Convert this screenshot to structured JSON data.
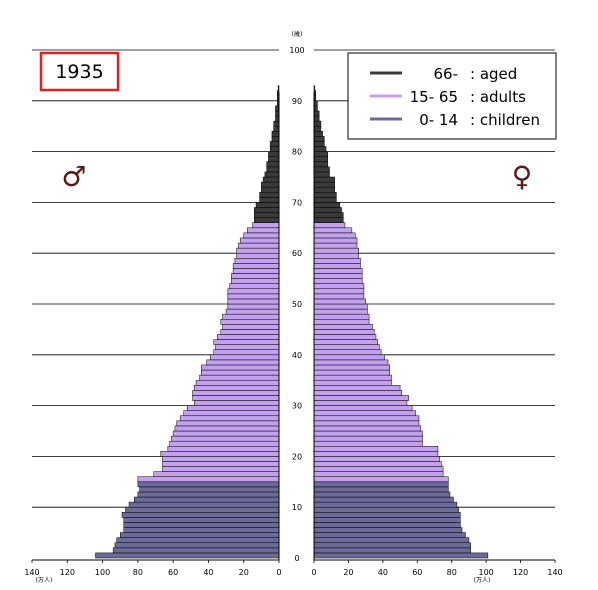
{
  "chart_data": {
    "type": "bar",
    "orientation": "horizontal",
    "chart_kind": "population-pyramid",
    "year": "1935",
    "age_axis": {
      "ticks": [
        0,
        10,
        20,
        30,
        40,
        50,
        60,
        70,
        80,
        90,
        100
      ],
      "unit": "(歳)",
      "range": [
        0,
        100
      ]
    },
    "value_axis": {
      "ticks": [
        0,
        20,
        40,
        60,
        80,
        100,
        120,
        140
      ],
      "unit": "(万人)",
      "range": [
        0,
        140
      ]
    },
    "gender_symbols": {
      "male": "♂",
      "female": "♀"
    },
    "legend": [
      {
        "range": "66-",
        "label": ": aged",
        "color": "#3a3a3a"
      },
      {
        "range": "15- 65",
        "label": ": adults",
        "color": "#c3a1ef"
      },
      {
        "range": "0- 14",
        "label": ": children",
        "color": "#6b6b9a"
      }
    ],
    "groups": [
      {
        "name": "children",
        "min_age": 0,
        "max_age": 14,
        "color": "#6b6b9a"
      },
      {
        "name": "adults",
        "min_age": 15,
        "max_age": 65,
        "color": "#c3a1ef"
      },
      {
        "name": "aged",
        "min_age": 66,
        "max_age": 100,
        "color": "#3a3a3a"
      }
    ],
    "ages": [
      0,
      1,
      2,
      3,
      4,
      5,
      6,
      7,
      8,
      9,
      10,
      11,
      12,
      13,
      14,
      15,
      16,
      17,
      18,
      19,
      20,
      21,
      22,
      23,
      24,
      25,
      26,
      27,
      28,
      29,
      30,
      31,
      32,
      33,
      34,
      35,
      36,
      37,
      38,
      39,
      40,
      41,
      42,
      43,
      44,
      45,
      46,
      47,
      48,
      49,
      50,
      51,
      52,
      53,
      54,
      55,
      56,
      57,
      58,
      59,
      60,
      61,
      62,
      63,
      64,
      65,
      66,
      67,
      68,
      69,
      70,
      71,
      72,
      73,
      74,
      75,
      76,
      77,
      78,
      79,
      80,
      81,
      82,
      83,
      84,
      85,
      86,
      87,
      88,
      89,
      90,
      91,
      92
    ],
    "series": [
      {
        "name": "male",
        "values": [
          104,
          94,
          93,
          92,
          90,
          88,
          88,
          88,
          89,
          87,
          85,
          82,
          80,
          79,
          80,
          80,
          71,
          66,
          66,
          66,
          67,
          63,
          62,
          61,
          60,
          59,
          58,
          56,
          54,
          52,
          48,
          49,
          49,
          48,
          47,
          45,
          44,
          44,
          41,
          39,
          37,
          36,
          37,
          35,
          33,
          32,
          33,
          32,
          30,
          29,
          29,
          29,
          29,
          28,
          27,
          27,
          26,
          26,
          25,
          24,
          24,
          23,
          22,
          20,
          18,
          15,
          14,
          14,
          14,
          13,
          11,
          11,
          10,
          10,
          9,
          8,
          7,
          7,
          6,
          6,
          5,
          5,
          4,
          4,
          3,
          3,
          2,
          2,
          2,
          1,
          1,
          1,
          0.5
        ]
      },
      {
        "name": "female",
        "values": [
          101,
          91,
          91,
          90,
          88,
          86,
          85,
          85,
          85,
          84,
          83,
          81,
          79,
          78,
          78,
          78,
          75,
          75,
          74,
          73,
          72,
          72,
          63,
          63,
          63,
          62,
          61,
          61,
          59,
          57,
          54,
          55,
          51,
          50,
          45,
          45,
          44,
          44,
          43,
          41,
          39,
          38,
          37,
          36,
          35,
          34,
          32,
          32,
          31,
          31,
          30,
          29,
          29,
          29,
          28,
          28,
          28,
          27,
          27,
          26,
          26,
          25,
          25,
          24,
          22,
          18,
          17,
          17,
          16,
          15,
          13,
          13,
          12,
          12,
          12,
          9,
          9,
          8,
          8,
          8,
          7,
          6,
          6,
          5,
          4,
          4,
          3,
          3,
          2,
          2,
          1,
          1,
          0.5
        ]
      }
    ]
  }
}
